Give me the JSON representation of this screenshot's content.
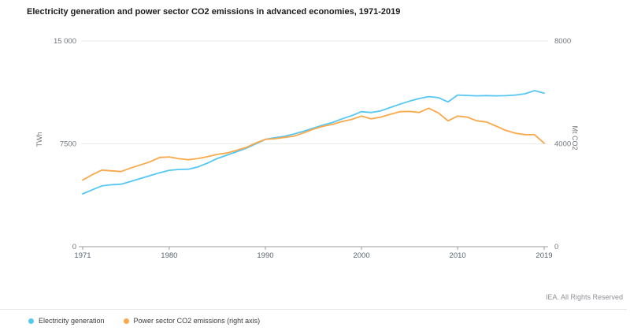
{
  "title": "Electricity generation and power sector CO2 emissions in advanced economies, 1971-2019",
  "footer": {
    "rights": "IEA. All Rights Reserved"
  },
  "axes": {
    "left": {
      "title": "TWh",
      "tick_labels": [
        "15 000",
        "7500",
        "0"
      ],
      "tick_values": [
        15000,
        7500,
        0
      ],
      "max": 15000
    },
    "right": {
      "title": "Mt CO2",
      "tick_labels": [
        "8000",
        "4000",
        "0"
      ],
      "tick_values": [
        8000,
        4000,
        0
      ],
      "max": 8000
    },
    "x": {
      "tick_labels": [
        "1971",
        "1980",
        "1990",
        "2000",
        "2010",
        "2019"
      ],
      "tick_values": [
        1971,
        1980,
        1990,
        2000,
        2010,
        2019
      ]
    }
  },
  "legend": {
    "items": [
      {
        "label": "Electricity generation",
        "color": "#55C7F2"
      },
      {
        "label": "Power sector CO2 emissions (right axis)",
        "color": "#F9A94B"
      }
    ]
  },
  "colors": {
    "electricity": "#55C7F2",
    "co2": "#F9A94B",
    "gridline": "#ebebeb",
    "axis": "#9b9b9b",
    "y_tick_label": "#73777b",
    "x_tick_label": "#5a646e"
  },
  "chart_data": {
    "type": "line",
    "title": "Electricity generation and power sector CO2 emissions in advanced economies, 1971-2019",
    "xlabel": "",
    "ylabel_left": "TWh",
    "ylabel_right": "Mt CO2",
    "xlim": [
      1971,
      2019
    ],
    "ylim_left": [
      0,
      15000
    ],
    "ylim_right": [
      0,
      8000
    ],
    "grid": "horizontal",
    "legend_position": "bottom-left",
    "x": [
      1971,
      1972,
      1973,
      1974,
      1975,
      1976,
      1977,
      1978,
      1979,
      1980,
      1981,
      1982,
      1983,
      1984,
      1985,
      1986,
      1987,
      1988,
      1989,
      1990,
      1991,
      1992,
      1993,
      1994,
      1995,
      1996,
      1997,
      1998,
      1999,
      2000,
      2001,
      2002,
      2003,
      2004,
      2005,
      2006,
      2007,
      2008,
      2009,
      2010,
      2011,
      2012,
      2013,
      2014,
      2015,
      2016,
      2017,
      2018,
      2019
    ],
    "series": [
      {
        "name": "Electricity generation",
        "axis": "left",
        "unit": "TWh",
        "color": "#55C7F2",
        "values": [
          3850,
          4150,
          4430,
          4520,
          4560,
          4760,
          4970,
          5180,
          5390,
          5570,
          5630,
          5650,
          5820,
          6100,
          6430,
          6670,
          6920,
          7170,
          7500,
          7830,
          7940,
          8050,
          8220,
          8420,
          8650,
          8870,
          9060,
          9330,
          9560,
          9845,
          9780,
          9900,
          10150,
          10390,
          10615,
          10805,
          10940,
          10870,
          10560,
          11055,
          11030,
          11000,
          11020,
          11000,
          11010,
          11060,
          11150,
          11380,
          11190
        ]
      },
      {
        "name": "Power sector CO2 emissions",
        "axis": "right",
        "unit": "Mt CO2",
        "color": "#F9A94B",
        "values": [
          2590,
          2800,
          2980,
          2950,
          2920,
          3060,
          3180,
          3300,
          3470,
          3490,
          3420,
          3380,
          3430,
          3500,
          3590,
          3640,
          3750,
          3860,
          4030,
          4175,
          4200,
          4250,
          4300,
          4430,
          4570,
          4680,
          4760,
          4870,
          4950,
          5080,
          4975,
          5040,
          5150,
          5250,
          5260,
          5220,
          5385,
          5200,
          4895,
          5080,
          5040,
          4895,
          4850,
          4690,
          4525,
          4415,
          4360,
          4355,
          4025
        ]
      }
    ]
  }
}
